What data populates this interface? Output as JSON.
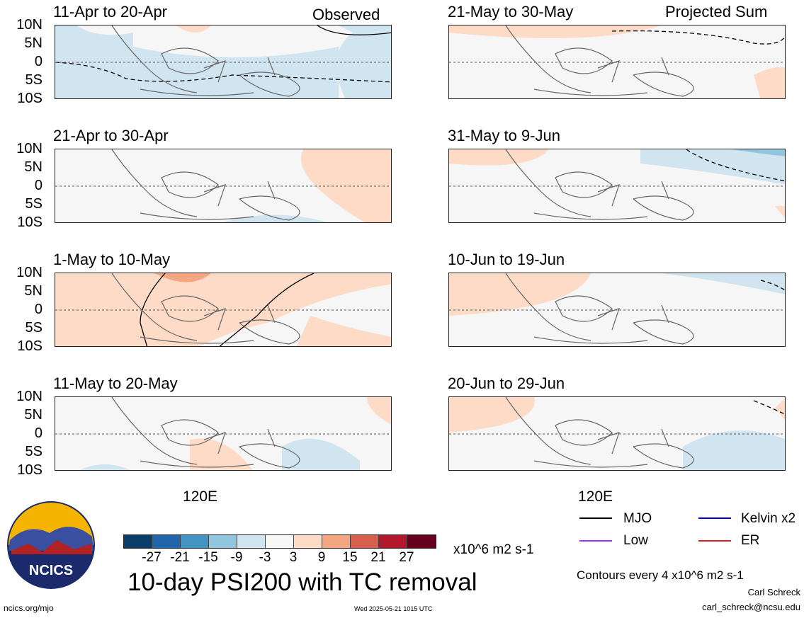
{
  "panels_left": [
    {
      "title": "11-Apr to 20-Apr",
      "tag": "Observed"
    },
    {
      "title": "21-Apr to 30-Apr",
      "tag": ""
    },
    {
      "title": "1-May to 10-May",
      "tag": ""
    },
    {
      "title": "11-May to 20-May",
      "tag": ""
    }
  ],
  "panels_right": [
    {
      "title": "21-May to 30-May",
      "tag": "Projected Sum"
    },
    {
      "title": "31-May to 9-Jun",
      "tag": ""
    },
    {
      "title": "10-Jun to 19-Jun",
      "tag": ""
    },
    {
      "title": "20-Jun to 29-Jun",
      "tag": ""
    }
  ],
  "lat_labels": [
    "10N",
    "5N",
    "0",
    "5S",
    "10S"
  ],
  "lon_label": "120E",
  "colorbar": {
    "colors": [
      "#0b3d6b",
      "#2166ac",
      "#4393c3",
      "#92c5de",
      "#d1e5f0",
      "#f7f7f7",
      "#fddbc7",
      "#f4a582",
      "#d6604d",
      "#b2182b",
      "#67001f"
    ],
    "ticks": [
      "-27",
      "-21",
      "-15",
      "-9",
      "-3",
      "3",
      "9",
      "15",
      "21",
      "27"
    ],
    "units": "x10^6 m2 s-1"
  },
  "main_title": "10-day PSI200 with TC removal",
  "legend": [
    {
      "label": "MJO",
      "color": "#000000"
    },
    {
      "label": "Kelvin x2",
      "color": "#0000cc"
    },
    {
      "label": "Low",
      "color": "#9b30ff"
    },
    {
      "label": "ER",
      "color": "#e31a1c"
    }
  ],
  "contour_note": "Contours every 4 x10^6 m2 s-1",
  "author": "Carl Schreck",
  "email": "carl_schreck@ncsu.edu",
  "url": "ncics.org/mjo",
  "timestamp": "Wed 2025-05-21 1015 UTC",
  "logo_text": "NCICS"
}
